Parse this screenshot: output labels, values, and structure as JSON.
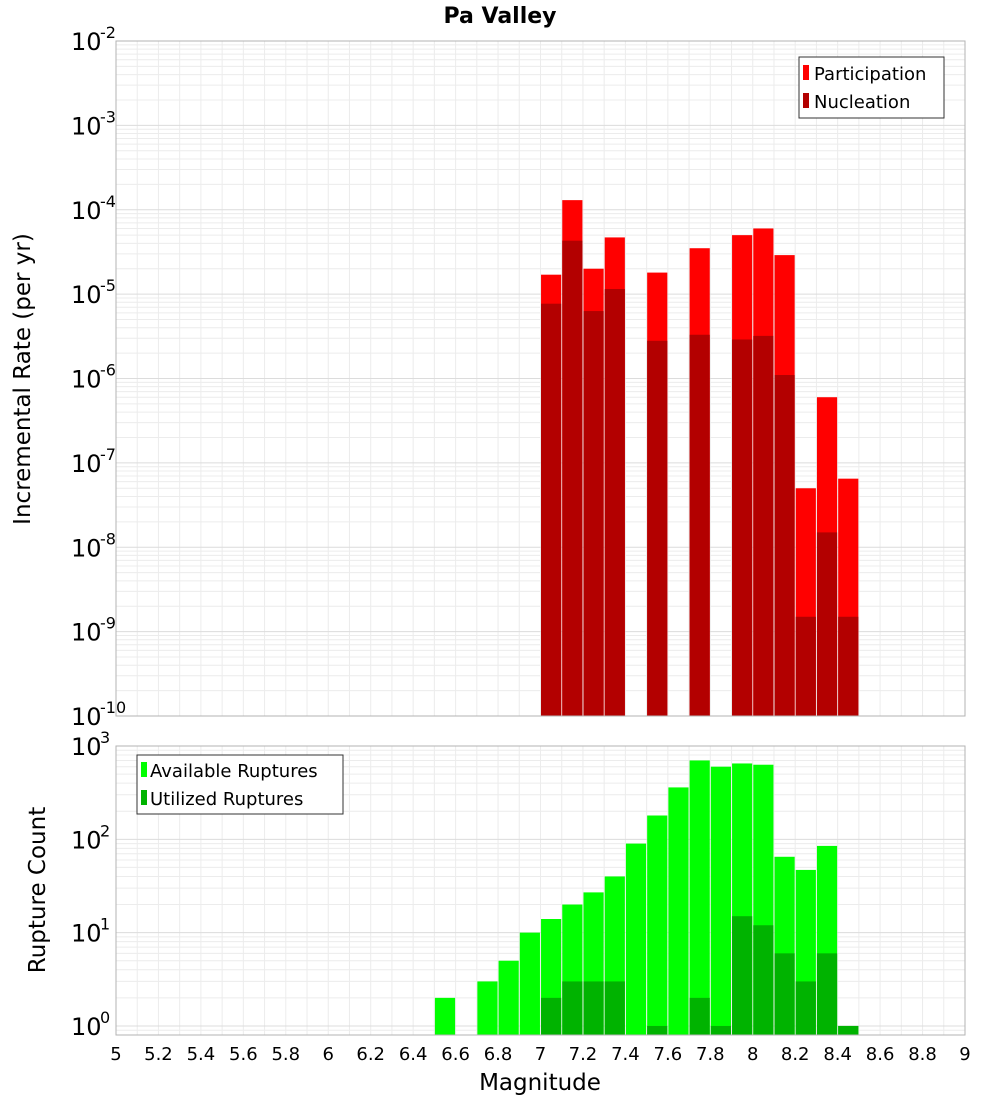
{
  "chart_data": [
    {
      "type": "bar",
      "title": "Pa Valley",
      "xlabel": "",
      "ylabel": "Incremental Rate (per yr)",
      "yscale": "log",
      "ylim": [
        1e-10,
        0.01
      ],
      "xlim": [
        5,
        9
      ],
      "grid": true,
      "legend_position": "top-right",
      "bar_width": 0.095,
      "y_ticks": [
        {
          "base": "10",
          "exp": "-10",
          "value": 1e-10
        },
        {
          "base": "10",
          "exp": "-9",
          "value": 1e-09
        },
        {
          "base": "10",
          "exp": "-8",
          "value": 1e-08
        },
        {
          "base": "10",
          "exp": "-7",
          "value": 1e-07
        },
        {
          "base": "10",
          "exp": "-6",
          "value": 1e-06
        },
        {
          "base": "10",
          "exp": "-5",
          "value": 1e-05
        },
        {
          "base": "10",
          "exp": "-4",
          "value": 0.0001
        },
        {
          "base": "10",
          "exp": "-3",
          "value": 0.001
        },
        {
          "base": "10",
          "exp": "-2",
          "value": 0.01
        }
      ],
      "x": [
        7.05,
        7.15,
        7.25,
        7.35,
        7.55,
        7.75,
        7.95,
        8.05,
        8.15,
        8.25,
        8.35,
        8.45
      ],
      "series": [
        {
          "name": "Participation",
          "color": "#ff0000",
          "values": [
            1.7e-05,
            0.00013,
            2e-05,
            4.7e-05,
            1.8e-05,
            3.5e-05,
            5e-05,
            6e-05,
            2.9e-05,
            5e-08,
            6e-07,
            6.5e-08
          ]
        },
        {
          "name": "Nucleation",
          "color": "#b30000",
          "values": [
            7.7e-06,
            4.3e-05,
            6.3e-06,
            1.15e-05,
            2.8e-06,
            3.3e-06,
            2.9e-06,
            3.2e-06,
            1.1e-06,
            1.5e-09,
            1.5e-08,
            1.5e-09
          ]
        }
      ]
    },
    {
      "type": "bar",
      "title": "",
      "xlabel": "Magnitude",
      "ylabel": "Rupture Count",
      "yscale": "log",
      "ylim": [
        0.8,
        1000
      ],
      "xlim": [
        5,
        9
      ],
      "grid": true,
      "legend_position": "top-left",
      "bar_width": 0.095,
      "x_ticks": [
        "5",
        "5.2",
        "5.4",
        "5.6",
        "5.8",
        "6",
        "6.2",
        "6.4",
        "6.6",
        "6.8",
        "7",
        "7.2",
        "7.4",
        "7.6",
        "7.8",
        "8",
        "8.2",
        "8.4",
        "8.6",
        "8.8",
        "9"
      ],
      "y_ticks": [
        {
          "base": "10",
          "exp": "0",
          "value": 1
        },
        {
          "base": "10",
          "exp": "1",
          "value": 10
        },
        {
          "base": "10",
          "exp": "2",
          "value": 100
        },
        {
          "base": "10",
          "exp": "3",
          "value": 1000
        }
      ],
      "x": [
        6.55,
        6.75,
        6.85,
        6.95,
        7.05,
        7.15,
        7.25,
        7.35,
        7.45,
        7.55,
        7.65,
        7.75,
        7.85,
        7.95,
        8.05,
        8.15,
        8.25,
        8.35,
        8.45
      ],
      "series": [
        {
          "name": "Available Ruptures",
          "color": "#00ff00",
          "values": [
            2,
            3,
            5,
            10,
            14,
            20,
            27,
            40,
            90,
            180,
            360,
            700,
            600,
            650,
            630,
            65,
            47,
            85,
            1
          ]
        },
        {
          "name": "Utilized Ruptures",
          "color": "#00b300",
          "values": [
            0,
            0,
            0,
            0,
            2,
            3,
            3,
            3,
            0,
            1,
            0,
            2,
            1,
            15,
            12,
            6,
            3,
            6,
            1
          ]
        }
      ]
    }
  ]
}
